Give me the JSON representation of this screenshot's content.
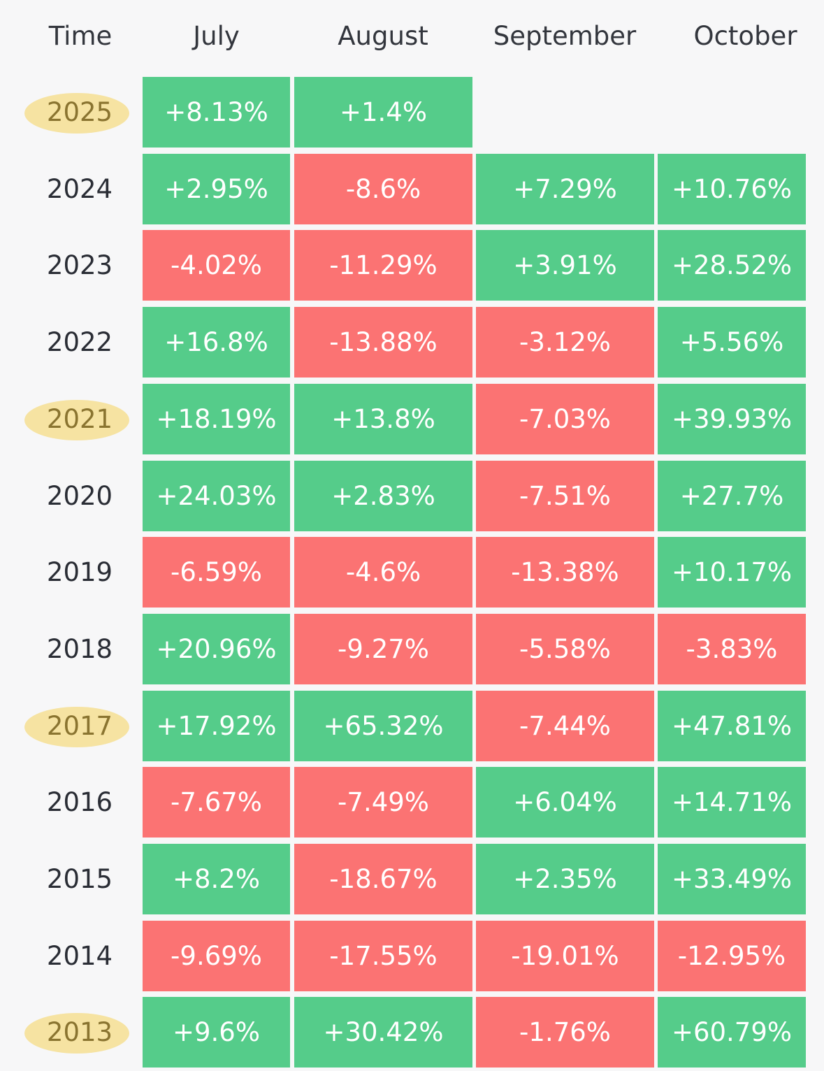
{
  "chart_data": {
    "type": "table",
    "title": "",
    "corner_label": "Time",
    "columns": [
      "July",
      "August",
      "September",
      "October"
    ],
    "rows": [
      {
        "year": "2025",
        "highlighted": true,
        "values": [
          "+8.13%",
          "+1.4%",
          null,
          null
        ]
      },
      {
        "year": "2024",
        "highlighted": false,
        "values": [
          "+2.95%",
          "-8.6%",
          "+7.29%",
          "+10.76%"
        ]
      },
      {
        "year": "2023",
        "highlighted": false,
        "values": [
          "-4.02%",
          "-11.29%",
          "+3.91%",
          "+28.52%"
        ]
      },
      {
        "year": "2022",
        "highlighted": false,
        "values": [
          "+16.8%",
          "-13.88%",
          "-3.12%",
          "+5.56%"
        ]
      },
      {
        "year": "2021",
        "highlighted": true,
        "values": [
          "+18.19%",
          "+13.8%",
          "-7.03%",
          "+39.93%"
        ]
      },
      {
        "year": "2020",
        "highlighted": false,
        "values": [
          "+24.03%",
          "+2.83%",
          "-7.51%",
          "+27.7%"
        ]
      },
      {
        "year": "2019",
        "highlighted": false,
        "values": [
          "-6.59%",
          "-4.6%",
          "-13.38%",
          "+10.17%"
        ]
      },
      {
        "year": "2018",
        "highlighted": false,
        "values": [
          "+20.96%",
          "-9.27%",
          "-5.58%",
          "-3.83%"
        ]
      },
      {
        "year": "2017",
        "highlighted": true,
        "values": [
          "+17.92%",
          "+65.32%",
          "-7.44%",
          "+47.81%"
        ]
      },
      {
        "year": "2016",
        "highlighted": false,
        "values": [
          "-7.67%",
          "-7.49%",
          "+6.04%",
          "+14.71%"
        ]
      },
      {
        "year": "2015",
        "highlighted": false,
        "values": [
          "+8.2%",
          "-18.67%",
          "+2.35%",
          "+33.49%"
        ]
      },
      {
        "year": "2014",
        "highlighted": false,
        "values": [
          "-9.69%",
          "-17.55%",
          "-19.01%",
          "-12.95%"
        ]
      },
      {
        "year": "2013",
        "highlighted": true,
        "values": [
          "+9.6%",
          "+30.42%",
          "-1.76%",
          "+60.79%"
        ]
      }
    ]
  },
  "colors": {
    "positive": "#55cc8a",
    "negative": "#fb7373",
    "highlight": "#f6e3a2",
    "background": "#f7f7f8"
  }
}
